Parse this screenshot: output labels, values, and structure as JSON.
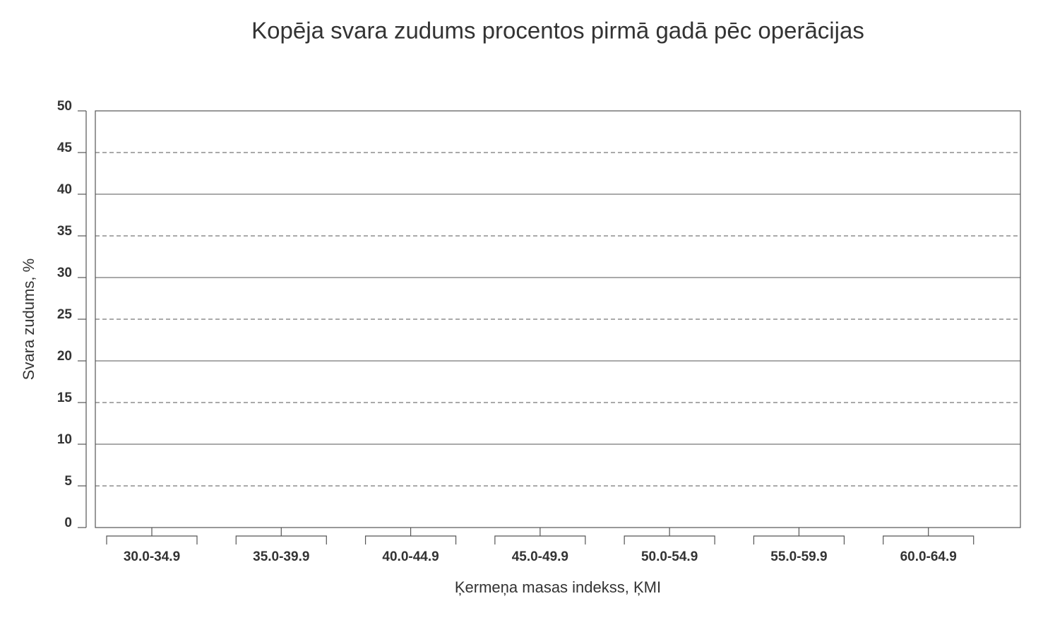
{
  "chart_data": {
    "type": "bar",
    "title": "Kopēja svara zudums procentos pirmā gadā pēc operācijas",
    "x_label": "Ķermeņa masas indekss, ĶMI",
    "y_label": "Svara zudums,  %",
    "categories": [
      "30.0-34.9",
      "35.0-39.9",
      "40.0-44.9",
      "45.0-49.9",
      "50.0-54.9",
      "55.0-59.9",
      "60.0-64.9"
    ],
    "ylim": [
      0,
      50
    ],
    "yticks": [
      0,
      5,
      10,
      15,
      20,
      25,
      30,
      35,
      40,
      45,
      50
    ],
    "grid": true
  }
}
